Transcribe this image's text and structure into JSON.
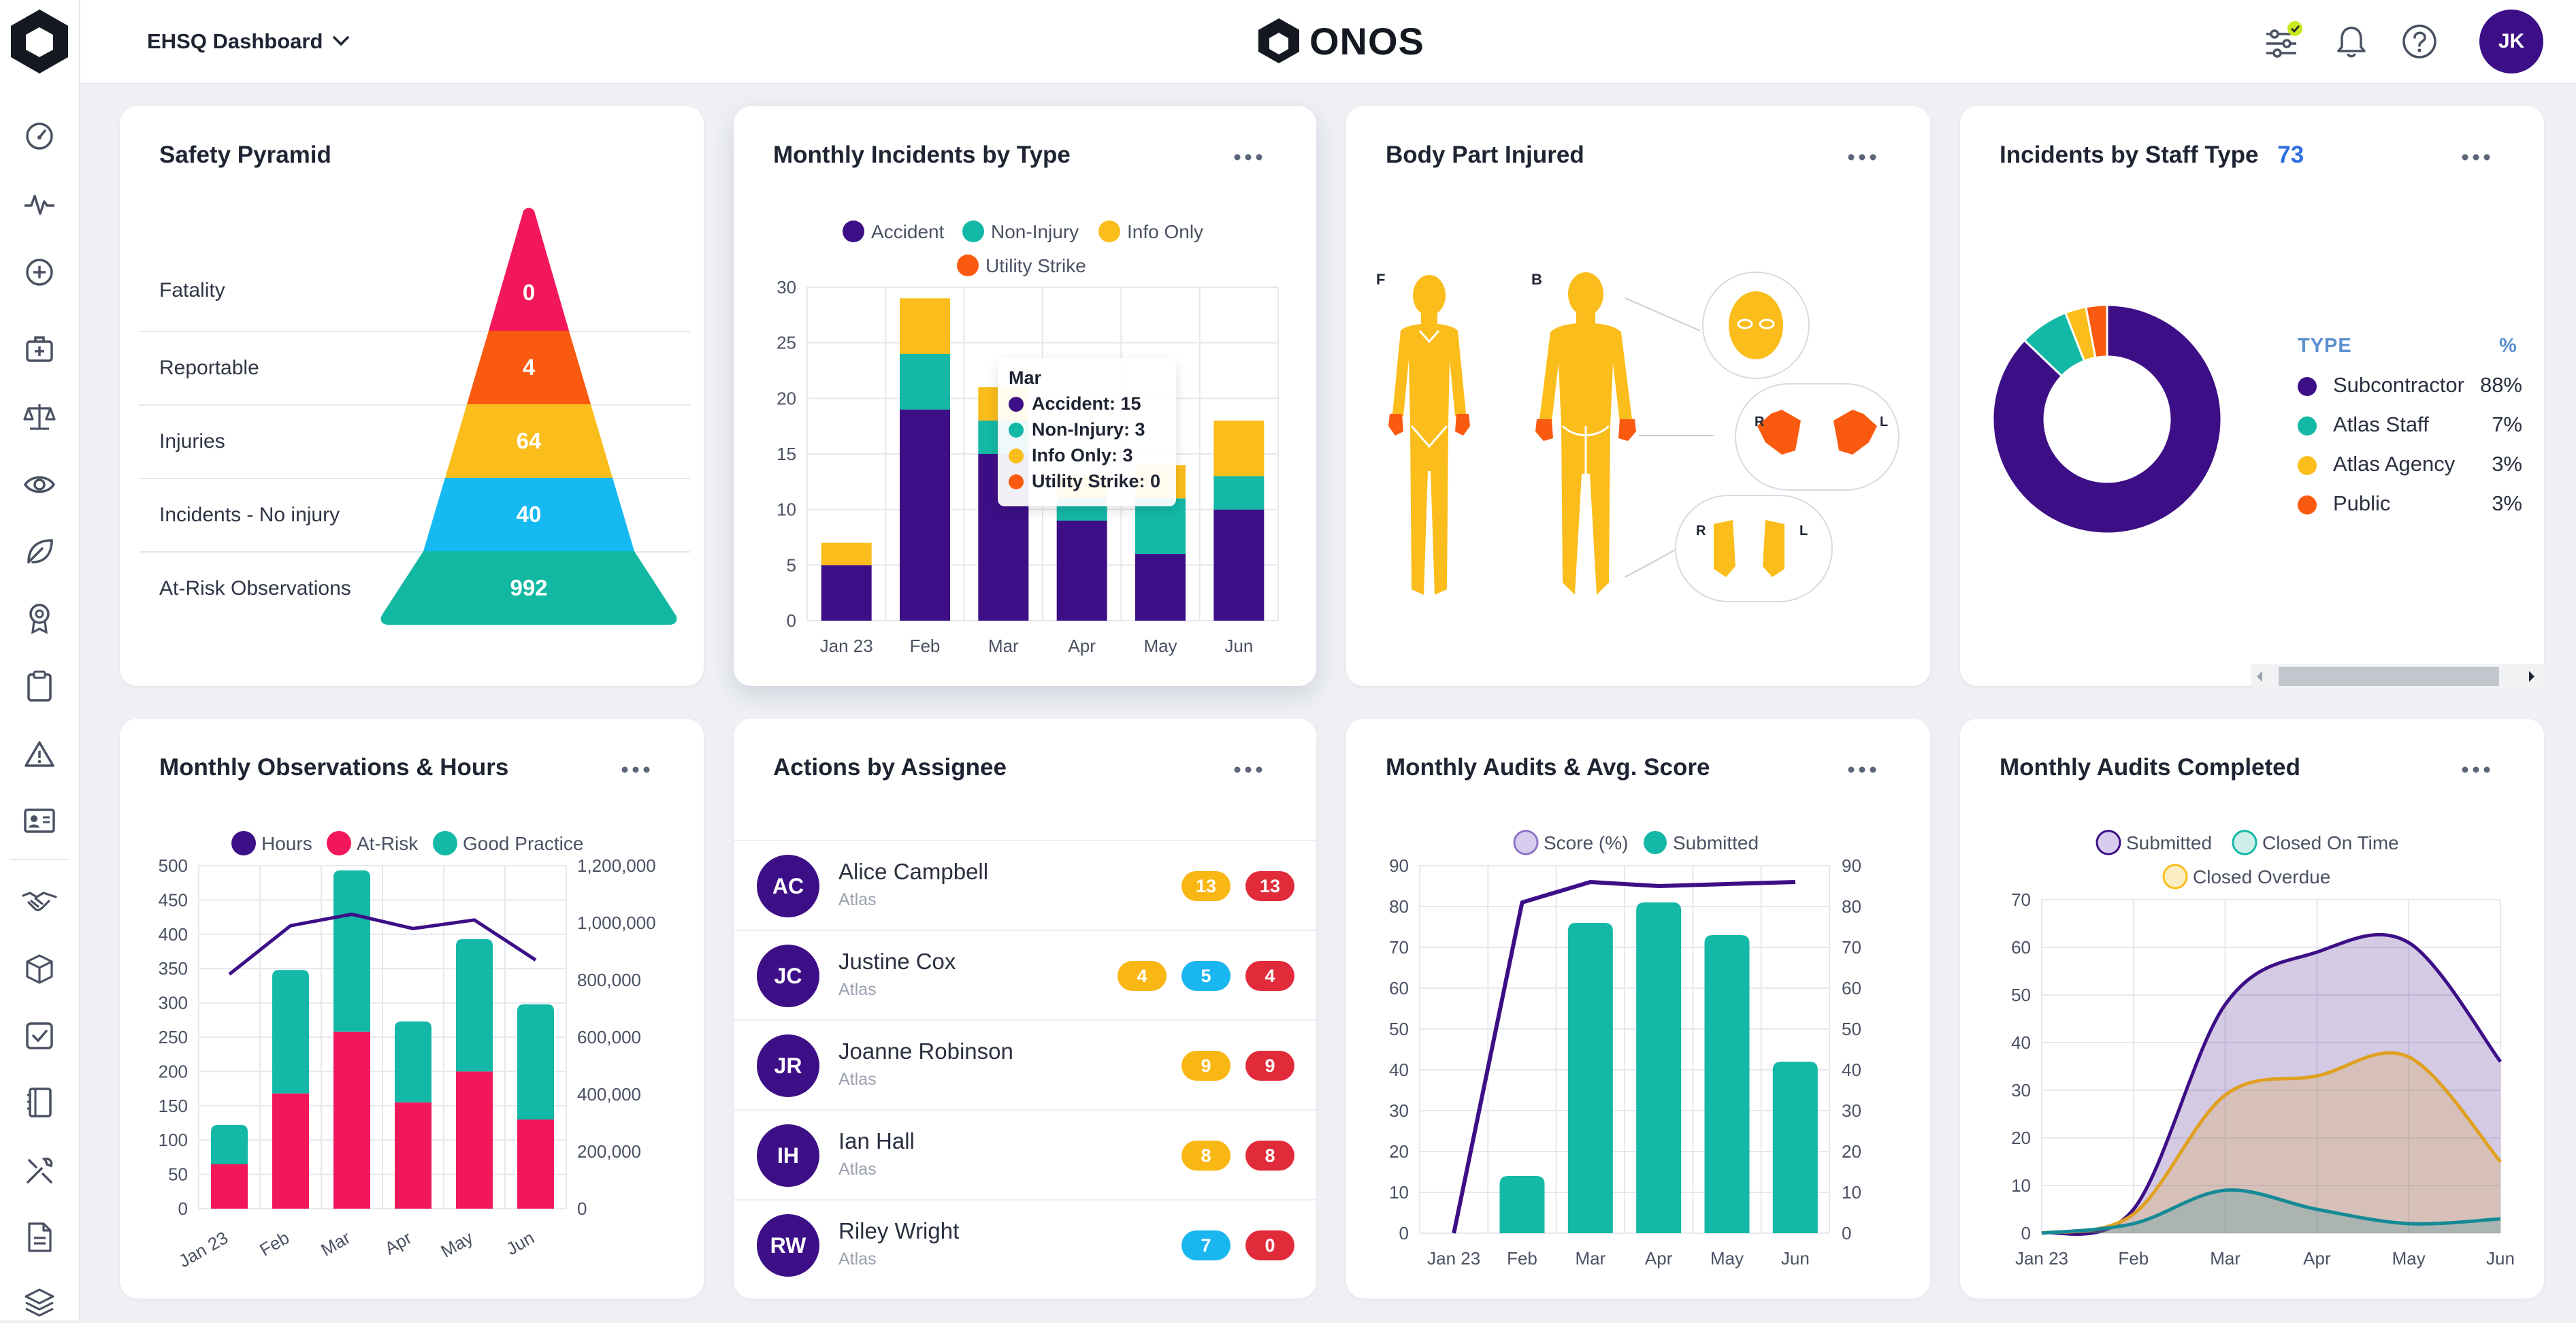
{
  "app": {
    "dashboard_select": "EHSQ Dashboard",
    "brand": "ONOS",
    "user_initials": "JK"
  },
  "sidebar": {
    "items": [
      "gauge-icon",
      "pulse-icon",
      "plus-circle-icon",
      "medical-kit-icon",
      "scales-icon",
      "eye-icon",
      "leaf-icon",
      "award-icon",
      "clipboard-icon",
      "warning-icon",
      "id-card-icon",
      "handshake-icon",
      "box-icon",
      "checklist-icon",
      "book-icon",
      "tools-icon",
      "document-icon",
      "layers-icon"
    ]
  },
  "safety_pyramid": {
    "title": "Safety Pyramid",
    "levels": [
      {
        "label": "Fatality",
        "value": "0",
        "color": "#f2175b"
      },
      {
        "label": "Reportable",
        "value": "4",
        "color": "#fa5a0f"
      },
      {
        "label": "Injuries",
        "value": "64",
        "color": "#fbbd1c"
      },
      {
        "label": "Incidents - No injury",
        "value": "40",
        "color": "#16b9f2"
      },
      {
        "label": "At-Risk Observations",
        "value": "992",
        "color": "#12b8a2"
      }
    ]
  },
  "incidents_by_type": {
    "title": "Monthly Incidents by Type",
    "legend": [
      {
        "name": "Accident",
        "color": "#3d0f86"
      },
      {
        "name": "Non-Injury",
        "color": "#14b8a6"
      },
      {
        "name": "Info Only",
        "color": "#fbbd1c"
      },
      {
        "name": "Utility Strike",
        "color": "#fa5a0f"
      }
    ],
    "tooltip": {
      "title": "Mar",
      "rows": [
        "Accident: 15",
        "Non-Injury: 3",
        "Info Only: 3",
        "Utility Strike: 0"
      ]
    }
  },
  "body_part": {
    "title": "Body Part Injured",
    "front_label": "F",
    "back_label": "B",
    "left_label": "L",
    "right_label": "R"
  },
  "staff_type": {
    "title": "Incidents by Staff Type",
    "total": "73",
    "type_header": "TYPE",
    "pct_header": "%",
    "rows": [
      {
        "label": "Subcontractor",
        "pct": "88%",
        "color": "#3d0f86",
        "value": 88
      },
      {
        "label": "Atlas Staff",
        "pct": "7%",
        "color": "#14b8a6",
        "value": 7
      },
      {
        "label": "Atlas Agency",
        "pct": "3%",
        "color": "#fbbd1c",
        "value": 3
      },
      {
        "label": "Public",
        "pct": "3%",
        "color": "#fa5a0f",
        "value": 3
      }
    ]
  },
  "observations": {
    "title": "Monthly Observations & Hours",
    "legend": [
      {
        "name": "Hours",
        "color": "#3d0f86"
      },
      {
        "name": "At-Risk",
        "color": "#f2175b"
      },
      {
        "name": "Good Practice",
        "color": "#14b8a6"
      }
    ]
  },
  "actions": {
    "title": "Actions by Assignee",
    "people": [
      {
        "initials": "AC",
        "name": "Alice Campbell",
        "org": "Atlas",
        "badges": [
          {
            "v": "13",
            "c": "amber"
          },
          {
            "v": "13",
            "c": "red"
          }
        ]
      },
      {
        "initials": "JC",
        "name": "Justine Cox",
        "org": "Atlas",
        "badges": [
          {
            "v": "4",
            "c": "amber"
          },
          {
            "v": "5",
            "c": "blue"
          },
          {
            "v": "4",
            "c": "red"
          }
        ]
      },
      {
        "initials": "JR",
        "name": "Joanne Robinson",
        "org": "Atlas",
        "badges": [
          {
            "v": "9",
            "c": "amber"
          },
          {
            "v": "9",
            "c": "red"
          }
        ]
      },
      {
        "initials": "IH",
        "name": "Ian Hall",
        "org": "Atlas",
        "badges": [
          {
            "v": "8",
            "c": "amber"
          },
          {
            "v": "8",
            "c": "red"
          }
        ]
      },
      {
        "initials": "RW",
        "name": "Riley Wright",
        "org": "Atlas",
        "badges": [
          {
            "v": "7",
            "c": "blue"
          },
          {
            "v": "0",
            "c": "red"
          }
        ]
      }
    ]
  },
  "audits_score": {
    "title": "Monthly Audits & Avg. Score",
    "legend": [
      {
        "name": "Score (%)",
        "color": "#3d0f86"
      },
      {
        "name": "Submitted",
        "color": "#14b8a6"
      }
    ]
  },
  "audits_completed": {
    "title": "Monthly Audits Completed",
    "legend": [
      {
        "name": "Submitted",
        "color": "#3d0f86"
      },
      {
        "name": "Closed On Time",
        "color": "#14b8a6"
      },
      {
        "name": "Closed Overdue",
        "color": "#fbbd1c"
      }
    ]
  },
  "chart_data": [
    {
      "type": "bar",
      "title": "Monthly Incidents by Type",
      "stacked": true,
      "categories": [
        "Jan 23",
        "Feb",
        "Mar",
        "Apr",
        "May",
        "Jun"
      ],
      "ylim": [
        0,
        30
      ],
      "yticks": [
        0,
        5,
        10,
        15,
        20,
        25,
        30
      ],
      "series": [
        {
          "name": "Accident",
          "color": "#3d0f86",
          "values": [
            5,
            19,
            15,
            9,
            6,
            10
          ]
        },
        {
          "name": "Non-Injury",
          "color": "#14b8a6",
          "values": [
            0,
            5,
            3,
            2,
            5,
            3
          ]
        },
        {
          "name": "Info Only",
          "color": "#fbbd1c",
          "values": [
            2,
            5,
            3,
            2,
            3,
            5
          ]
        },
        {
          "name": "Utility Strike",
          "color": "#fa5a0f",
          "values": [
            0,
            0,
            0,
            0,
            0,
            0
          ]
        }
      ]
    },
    {
      "type": "bar",
      "title": "Monthly Observations & Hours",
      "stacked": true,
      "categories": [
        "Jan 23",
        "Feb",
        "Mar",
        "Apr",
        "May",
        "Jun"
      ],
      "ylim": [
        0,
        500
      ],
      "yticks": [
        0,
        50,
        100,
        150,
        200,
        250,
        300,
        350,
        400,
        450,
        500
      ],
      "y2lim": [
        0,
        1200000
      ],
      "y2ticks": [
        "0",
        "200,000",
        "400,000",
        "600,000",
        "800,000",
        "1,000,000",
        "1,200,000"
      ],
      "series": [
        {
          "name": "At-Risk",
          "color": "#f2175b",
          "values": [
            65,
            168,
            258,
            155,
            200,
            130
          ]
        },
        {
          "name": "Good Practice",
          "color": "#14b8a6",
          "values": [
            57,
            180,
            235,
            118,
            193,
            168
          ]
        },
        {
          "name": "Hours",
          "color": "#3d0f86",
          "type": "line",
          "axis": "right",
          "values": [
            820000,
            990000,
            1030000,
            980000,
            1010000,
            870000
          ]
        }
      ]
    },
    {
      "type": "bar",
      "title": "Monthly Audits & Avg. Score",
      "categories": [
        "Jan 23",
        "Feb",
        "Mar",
        "Apr",
        "May",
        "Jun"
      ],
      "ylim": [
        0,
        90
      ],
      "yticks": [
        0,
        10,
        20,
        30,
        40,
        50,
        60,
        70,
        80,
        90
      ],
      "series": [
        {
          "name": "Submitted",
          "color": "#14b8a6",
          "values": [
            0,
            14,
            76,
            81,
            73,
            42
          ]
        },
        {
          "name": "Score (%)",
          "color": "#3d0f86",
          "type": "line",
          "values": [
            0,
            81,
            86,
            85,
            85.5,
            86
          ]
        }
      ]
    },
    {
      "type": "area",
      "title": "Monthly Audits Completed",
      "categories": [
        "Jan 23",
        "Feb",
        "Mar",
        "Apr",
        "May",
        "Jun"
      ],
      "ylim": [
        0,
        70
      ],
      "yticks": [
        0,
        10,
        20,
        30,
        40,
        50,
        60,
        70
      ],
      "series": [
        {
          "name": "Submitted",
          "color": "#3d0f86",
          "values": [
            0,
            5,
            48,
            59,
            61,
            36
          ]
        },
        {
          "name": "Closed Overdue",
          "color": "#e0a020",
          "values": [
            0,
            4,
            29,
            33,
            37,
            15
          ]
        },
        {
          "name": "Closed On Time",
          "color": "#138a96",
          "values": [
            0,
            2,
            9,
            5,
            2,
            3
          ]
        }
      ]
    },
    {
      "type": "pie",
      "title": "Incidents by Staff Type",
      "categories": [
        "Subcontractor",
        "Atlas Staff",
        "Atlas Agency",
        "Public"
      ],
      "values": [
        88,
        7,
        3,
        3
      ]
    }
  ]
}
